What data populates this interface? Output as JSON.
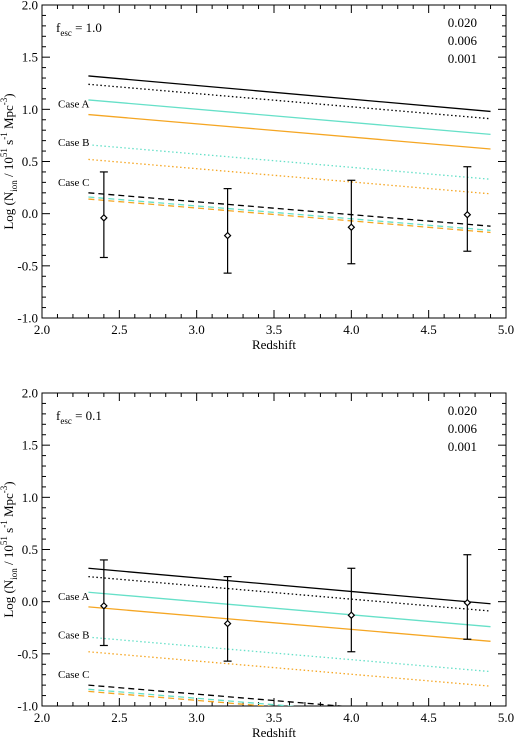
{
  "chart_data": [
    {
      "type": "line",
      "panel": "top",
      "fesc_label": "1.0",
      "xlabel": "Redshift",
      "ylabel": "Log (N_ion / 10^51 s^-1 Mpc^-3)",
      "xlim": [
        2.0,
        5.0
      ],
      "ylim": [
        -1.0,
        2.0
      ],
      "xticks": [
        "2.0",
        "2.5",
        "3.0",
        "3.5",
        "4.0",
        "4.5",
        "5.0"
      ],
      "yticks": [
        "-1.0",
        "-0.5",
        "0.0",
        "0.5",
        "1.0",
        "1.5",
        "2.0"
      ],
      "legend": [
        {
          "label": "0.020",
          "color": "#f5a623"
        },
        {
          "label": "0.006",
          "color": "#66e0c8"
        },
        {
          "label": "0.001",
          "color": "#000000"
        }
      ],
      "case_labels": [
        {
          "text": "Case A",
          "y": 0.95
        },
        {
          "text": "Case B",
          "y": 0.58
        },
        {
          "text": "Case C",
          "y": 0.2
        }
      ],
      "series": [
        {
          "case": "A",
          "metallicity": "0.001",
          "color": "#000000",
          "dash": "solid",
          "x": [
            2.3,
            4.9
          ],
          "y": [
            1.32,
            0.98
          ]
        },
        {
          "case": "A",
          "metallicity": "0.006",
          "color": "#66e0c8",
          "dash": "solid",
          "x": [
            2.3,
            4.9
          ],
          "y": [
            1.09,
            0.76
          ]
        },
        {
          "case": "A",
          "metallicity": "0.020",
          "color": "#f5a623",
          "dash": "solid",
          "x": [
            2.3,
            4.9
          ],
          "y": [
            0.95,
            0.62
          ]
        },
        {
          "case": "B",
          "metallicity": "0.001",
          "color": "#000000",
          "dash": "dotted",
          "x": [
            2.3,
            4.9
          ],
          "y": [
            1.24,
            0.91
          ]
        },
        {
          "case": "B",
          "metallicity": "0.006",
          "color": "#66e0c8",
          "dash": "dotted",
          "x": [
            2.3,
            4.9
          ],
          "y": [
            0.66,
            0.33
          ]
        },
        {
          "case": "B",
          "metallicity": "0.020",
          "color": "#f5a623",
          "dash": "dotted",
          "x": [
            2.3,
            4.9
          ],
          "y": [
            0.52,
            0.19
          ]
        },
        {
          "case": "C",
          "metallicity": "0.001",
          "color": "#000000",
          "dash": "dashed",
          "x": [
            2.3,
            4.9
          ],
          "y": [
            0.2,
            -0.12
          ]
        },
        {
          "case": "C",
          "metallicity": "0.006",
          "color": "#66e0c8",
          "dash": "dashed",
          "x": [
            2.3,
            4.9
          ],
          "y": [
            0.16,
            -0.16
          ]
        },
        {
          "case": "C",
          "metallicity": "0.020",
          "color": "#f5a623",
          "dash": "dashed",
          "x": [
            2.3,
            4.9
          ],
          "y": [
            0.14,
            -0.18
          ]
        }
      ],
      "points": [
        {
          "x": 2.4,
          "y": -0.04,
          "yerr_low": -0.42,
          "yerr_high": 0.4
        },
        {
          "x": 3.2,
          "y": -0.21,
          "yerr_low": -0.57,
          "yerr_high": 0.24
        },
        {
          "x": 4.0,
          "y": -0.13,
          "yerr_low": -0.48,
          "yerr_high": 0.32
        },
        {
          "x": 4.75,
          "y": -0.01,
          "yerr_low": -0.36,
          "yerr_high": 0.45
        }
      ]
    },
    {
      "type": "line",
      "panel": "bottom",
      "fesc_label": "0.1",
      "xlabel": "Redshift",
      "ylabel": "Log (N_ion / 10^51 s^-1 Mpc^-3)",
      "xlim": [
        2.0,
        5.0
      ],
      "ylim": [
        -1.0,
        2.0
      ],
      "xticks": [
        "2.0",
        "2.5",
        "3.0",
        "3.5",
        "4.0",
        "4.5",
        "5.0"
      ],
      "yticks": [
        "-1.0",
        "-0.5",
        "0.0",
        "0.5",
        "1.0",
        "1.5",
        "2.0"
      ],
      "legend": [
        {
          "label": "0.020",
          "color": "#f5a623"
        },
        {
          "label": "0.006",
          "color": "#66e0c8"
        },
        {
          "label": "0.001",
          "color": "#000000"
        }
      ],
      "case_labels": [
        {
          "text": "Case A",
          "y": -0.05
        },
        {
          "text": "Case B",
          "y": -0.42
        },
        {
          "text": "Case C",
          "y": -0.8
        }
      ],
      "series": [
        {
          "case": "A",
          "metallicity": "0.001",
          "color": "#000000",
          "dash": "solid",
          "x": [
            2.3,
            4.9
          ],
          "y": [
            0.32,
            -0.02
          ]
        },
        {
          "case": "A",
          "metallicity": "0.006",
          "color": "#66e0c8",
          "dash": "solid",
          "x": [
            2.3,
            4.9
          ],
          "y": [
            0.09,
            -0.24
          ]
        },
        {
          "case": "A",
          "metallicity": "0.020",
          "color": "#f5a623",
          "dash": "solid",
          "x": [
            2.3,
            4.9
          ],
          "y": [
            -0.05,
            -0.38
          ]
        },
        {
          "case": "B",
          "metallicity": "0.001",
          "color": "#000000",
          "dash": "dotted",
          "x": [
            2.3,
            4.9
          ],
          "y": [
            0.24,
            -0.09
          ]
        },
        {
          "case": "B",
          "metallicity": "0.006",
          "color": "#66e0c8",
          "dash": "dotted",
          "x": [
            2.3,
            4.9
          ],
          "y": [
            -0.34,
            -0.67
          ]
        },
        {
          "case": "B",
          "metallicity": "0.020",
          "color": "#f5a623",
          "dash": "dotted",
          "x": [
            2.3,
            4.9
          ],
          "y": [
            -0.48,
            -0.81
          ]
        },
        {
          "case": "C",
          "metallicity": "0.001",
          "color": "#000000",
          "dash": "dashed",
          "x": [
            2.3,
            4.9
          ],
          "y": [
            -0.8,
            -1.12
          ]
        },
        {
          "case": "C",
          "metallicity": "0.006",
          "color": "#66e0c8",
          "dash": "dashed",
          "x": [
            2.3,
            4.9
          ],
          "y": [
            -0.84,
            -1.16
          ]
        },
        {
          "case": "C",
          "metallicity": "0.020",
          "color": "#f5a623",
          "dash": "dashed",
          "x": [
            2.3,
            4.9
          ],
          "y": [
            -0.86,
            -1.18
          ]
        }
      ],
      "points": [
        {
          "x": 2.4,
          "y": -0.04,
          "yerr_low": -0.42,
          "yerr_high": 0.4
        },
        {
          "x": 3.2,
          "y": -0.21,
          "yerr_low": -0.57,
          "yerr_high": 0.24
        },
        {
          "x": 4.0,
          "y": -0.13,
          "yerr_low": -0.48,
          "yerr_high": 0.32
        },
        {
          "x": 4.75,
          "y": -0.01,
          "yerr_low": -0.36,
          "yerr_high": 0.45
        }
      ]
    }
  ]
}
